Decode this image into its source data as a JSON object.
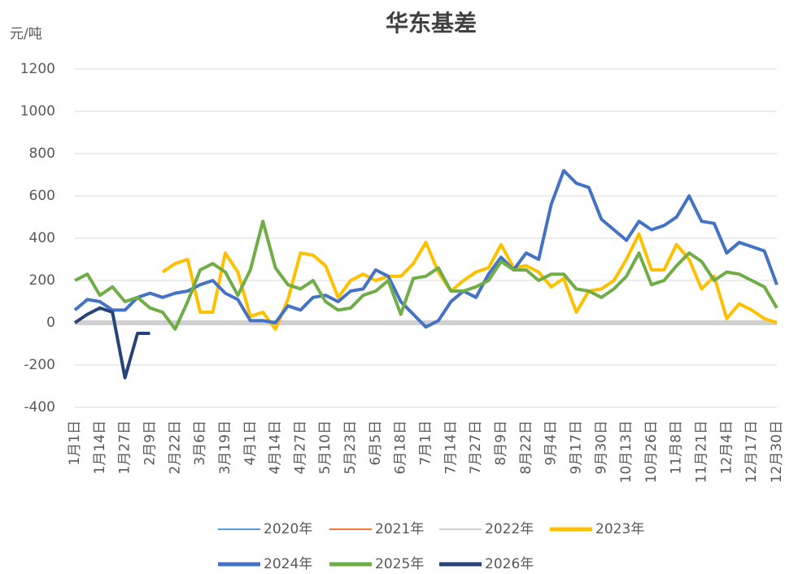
{
  "chart_data": {
    "type": "line",
    "title": "华东基差",
    "y_label": "元/吨",
    "categories": [
      "1月1日",
      null,
      "1月14日",
      null,
      "1月27日",
      null,
      "2月9日",
      null,
      "2月22日",
      null,
      "3月6日",
      null,
      "3月19日",
      null,
      "4月1日",
      null,
      "4月14日",
      null,
      "4月27日",
      null,
      "5月10日",
      null,
      "5月23日",
      null,
      "6月5日",
      null,
      "6月18日",
      null,
      "7月1日",
      null,
      "7月14日",
      null,
      "7月27日",
      null,
      "8月9日",
      null,
      "8月22日",
      null,
      "9月4日",
      null,
      "9月17日",
      null,
      "9月30日",
      null,
      "10月13日",
      null,
      "10月26日",
      null,
      "11月8日",
      null,
      "11月21日",
      null,
      "12月4日",
      null,
      "12月17日",
      null,
      "12月30日"
    ],
    "ylim": [
      -400,
      1200
    ],
    "yticks": [
      -400,
      -200,
      0,
      200,
      400,
      600,
      800,
      1000,
      1200
    ],
    "grid": true,
    "series": [
      {
        "name": "2020年",
        "color": "#5b9bd5",
        "values": [
          null,
          null,
          null,
          null,
          null,
          null,
          null,
          null,
          null,
          null,
          null,
          null,
          null,
          null,
          null,
          null,
          null,
          null,
          null,
          null,
          null,
          null,
          null,
          null,
          null,
          null,
          null,
          null,
          null,
          null,
          null,
          null,
          null,
          null,
          null,
          null,
          null,
          null,
          null,
          null,
          null,
          null,
          null,
          null,
          null,
          null,
          null,
          null,
          null,
          null,
          null,
          null,
          null,
          null,
          null,
          null,
          null
        ]
      },
      {
        "name": "2021年",
        "color": "#ed7d31",
        "values": [
          null,
          null,
          null,
          null,
          null,
          null,
          null,
          null,
          null,
          null,
          null,
          null,
          null,
          null,
          null,
          null,
          null,
          null,
          null,
          null,
          null,
          null,
          null,
          null,
          null,
          null,
          null,
          null,
          null,
          null,
          null,
          null,
          null,
          null,
          null,
          null,
          null,
          null,
          null,
          null,
          null,
          null,
          null,
          null,
          null,
          null,
          null,
          null,
          null,
          null,
          null,
          null,
          null,
          null,
          null,
          null,
          null
        ]
      },
      {
        "name": "2022年",
        "color": "#d0d0d0",
        "values": [
          0,
          0,
          0,
          0,
          0,
          0,
          0,
          0,
          0,
          0,
          0,
          0,
          0,
          0,
          0,
          0,
          0,
          0,
          0,
          0,
          0,
          0,
          0,
          0,
          0,
          0,
          0,
          0,
          0,
          0,
          0,
          0,
          0,
          0,
          0,
          0,
          0,
          0,
          0,
          0,
          0,
          0,
          0,
          0,
          0,
          0,
          0,
          0,
          0,
          0,
          0,
          0,
          0,
          0,
          0,
          0,
          0
        ]
      },
      {
        "name": "2023年",
        "color": "#ffc000",
        "values": [
          null,
          null,
          null,
          null,
          null,
          null,
          null,
          240,
          280,
          300,
          50,
          50,
          330,
          240,
          30,
          50,
          -30,
          110,
          330,
          320,
          270,
          120,
          200,
          230,
          200,
          220,
          220,
          280,
          380,
          240,
          150,
          200,
          240,
          260,
          370,
          260,
          270,
          240,
          170,
          210,
          50,
          150,
          160,
          200,
          300,
          420,
          250,
          250,
          370,
          300,
          160,
          220,
          20,
          90,
          60,
          20,
          0
        ]
      },
      {
        "name": "2024年",
        "color": "#4472c4",
        "values": [
          60,
          110,
          100,
          60,
          60,
          120,
          140,
          120,
          140,
          150,
          180,
          200,
          140,
          110,
          10,
          10,
          0,
          80,
          60,
          120,
          130,
          100,
          150,
          160,
          250,
          220,
          100,
          40,
          -20,
          10,
          100,
          150,
          120,
          230,
          310,
          250,
          330,
          300,
          560,
          720,
          660,
          640,
          490,
          440,
          390,
          480,
          440,
          460,
          500,
          600,
          480,
          470,
          330,
          380,
          360,
          340,
          180
        ]
      },
      {
        "name": "2025年",
        "color": "#70ad47",
        "values": [
          200,
          230,
          130,
          170,
          100,
          120,
          70,
          50,
          -30,
          100,
          250,
          280,
          240,
          130,
          250,
          480,
          260,
          180,
          160,
          200,
          100,
          60,
          70,
          130,
          150,
          200,
          40,
          210,
          220,
          260,
          150,
          150,
          170,
          200,
          290,
          250,
          250,
          200,
          230,
          230,
          160,
          150,
          120,
          160,
          220,
          330,
          180,
          200,
          270,
          330,
          290,
          200,
          240,
          230,
          200,
          170,
          70
        ]
      },
      {
        "name": "2026年",
        "color": "#264478",
        "values": [
          0,
          40,
          70,
          50,
          -260,
          -50,
          -50,
          null,
          null,
          null,
          null,
          null,
          null,
          null,
          null,
          null,
          null,
          null,
          null,
          null,
          null,
          null,
          null,
          null,
          null,
          null,
          null,
          null,
          null,
          null,
          null,
          null,
          null,
          null,
          null,
          null,
          null,
          null,
          null,
          null,
          null,
          null,
          null,
          null,
          null,
          null,
          null,
          null,
          null,
          null,
          null,
          null,
          null,
          null,
          null,
          null,
          null
        ]
      }
    ]
  }
}
